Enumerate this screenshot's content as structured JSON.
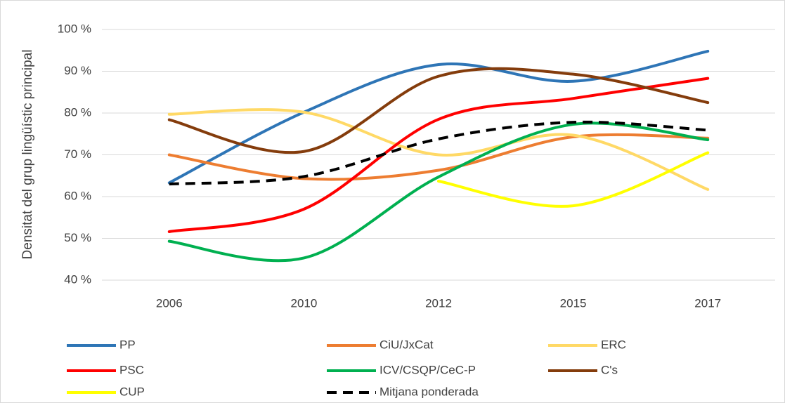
{
  "chart_data": {
    "type": "line",
    "y_label": "Densitat del grup lingüístic principal",
    "categories": [
      "2006",
      "2010",
      "2012",
      "2015",
      "2017"
    ],
    "series": [
      {
        "name": "PP",
        "color": "#2e75b6",
        "values": [
          63.3,
          80.2,
          91.6,
          87.6,
          94.8
        ]
      },
      {
        "name": "CiU/JxCat",
        "color": "#ed7d31",
        "values": [
          70,
          64.3,
          66.3,
          74.3,
          74
        ]
      },
      {
        "name": "ERC",
        "color": "#ffd966",
        "values": [
          79.7,
          80.2,
          70,
          74.7,
          61.7
        ]
      },
      {
        "name": "PSC",
        "color": "#ff0000",
        "values": [
          51.6,
          57,
          78.5,
          83.5,
          88.3
        ]
      },
      {
        "name": "ICV/CSQP/CeC-P",
        "color": "#00b050",
        "values": [
          49.3,
          45.3,
          64.7,
          77.3,
          73.6
        ]
      },
      {
        "name": "C's",
        "color": "#843c0c",
        "values": [
          78.4,
          70.8,
          88.8,
          89.3,
          82.5
        ]
      },
      {
        "name": "CUP",
        "color": "#ffff00",
        "values": [
          null,
          null,
          63.7,
          57.8,
          70.5
        ]
      },
      {
        "name": "Mitjana ponderada",
        "color": "#000000",
        "dashed": true,
        "values": [
          63,
          64.8,
          73.8,
          77.8,
          75.9
        ]
      }
    ],
    "ylim": [
      40,
      100
    ],
    "yticks": [
      {
        "value": 40,
        "label": "40 %"
      },
      {
        "value": 50,
        "label": "50 %"
      },
      {
        "value": 60,
        "label": "60 %"
      },
      {
        "value": 70,
        "label": "70 %"
      },
      {
        "value": 80,
        "label": "80 %"
      },
      {
        "value": 90,
        "label": "90 %"
      },
      {
        "value": 100,
        "label": "100 %"
      }
    ],
    "grid": true,
    "legend": "bottom"
  }
}
